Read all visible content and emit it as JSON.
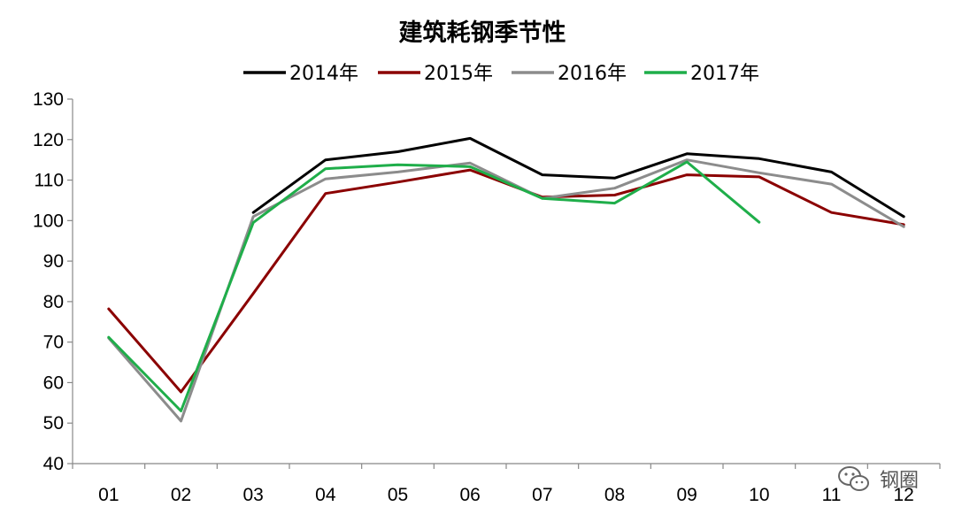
{
  "chart_data": {
    "type": "line",
    "title": "建筑耗钢季节性",
    "categories": [
      "01",
      "02",
      "03",
      "04",
      "05",
      "06",
      "07",
      "08",
      "09",
      "10",
      "11",
      "12"
    ],
    "ylim": [
      40,
      130
    ],
    "yticks": [
      40,
      50,
      60,
      70,
      80,
      90,
      100,
      110,
      120,
      130
    ],
    "grid": false,
    "legend_position": "top",
    "series": [
      {
        "name": "2014年",
        "color": "#000000",
        "values": [
          null,
          null,
          102.0,
          115.0,
          117.0,
          120.3,
          111.3,
          110.5,
          116.5,
          115.3,
          112.0,
          101.0
        ]
      },
      {
        "name": "2015年",
        "color": "#8b0000",
        "values": [
          78.2,
          57.7,
          82.0,
          106.7,
          109.5,
          112.5,
          105.8,
          106.3,
          111.3,
          110.8,
          102.0,
          99.0
        ]
      },
      {
        "name": "2016年",
        "color": "#8c8c8c",
        "values": [
          71.0,
          50.5,
          101.0,
          110.3,
          112.0,
          114.2,
          105.5,
          108.0,
          115.0,
          111.8,
          109.0,
          98.5
        ]
      },
      {
        "name": "2017年",
        "color": "#1fae4a",
        "values": [
          71.2,
          53.0,
          99.5,
          112.8,
          113.8,
          113.3,
          105.5,
          104.3,
          114.5,
          99.6,
          null,
          null
        ]
      }
    ]
  },
  "watermark": {
    "text": "钢圈",
    "icon": "wechat-icon"
  }
}
